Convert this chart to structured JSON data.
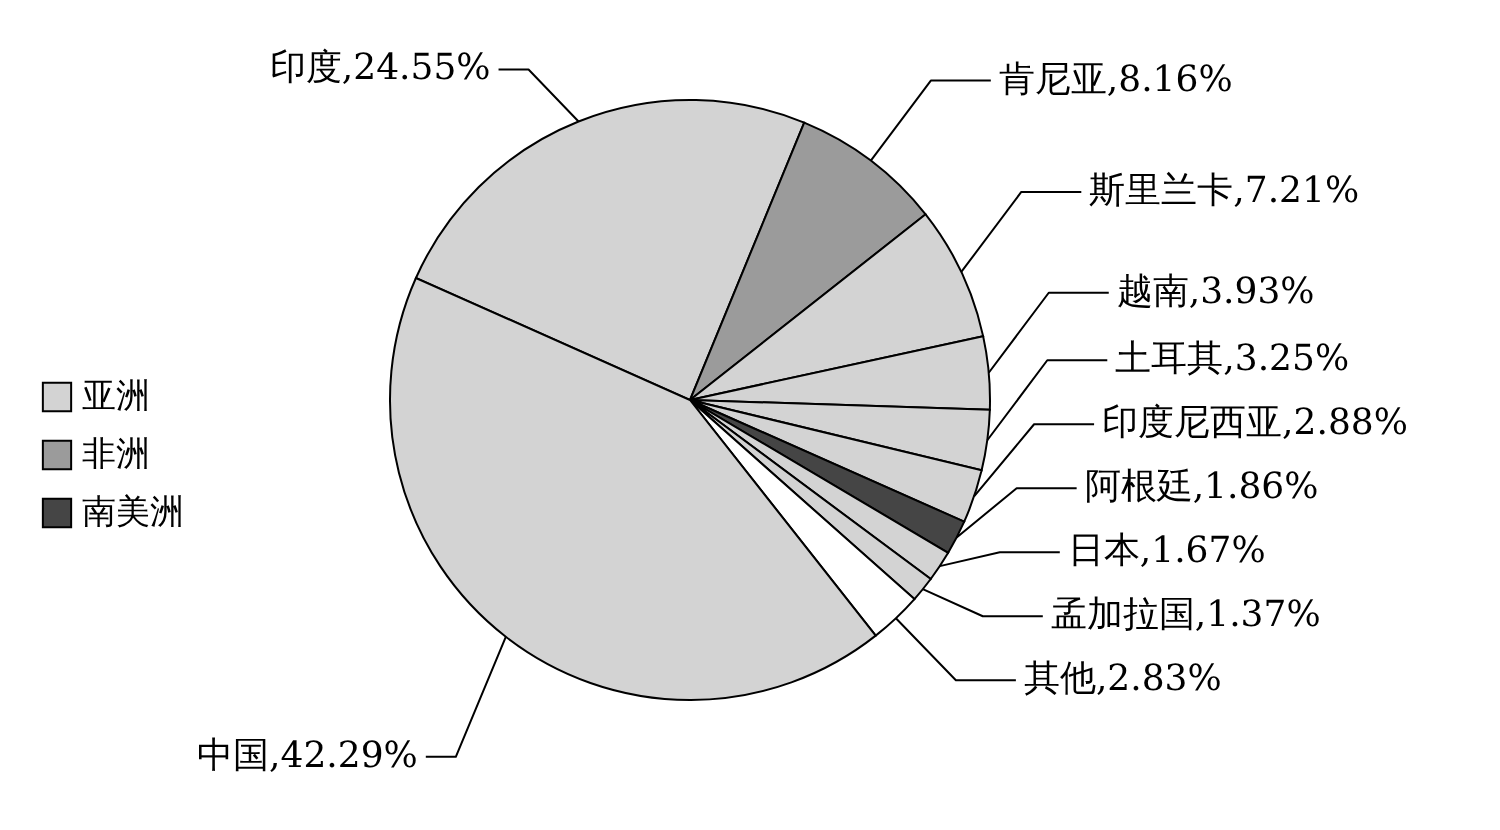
{
  "chart_data": {
    "type": "pie",
    "categories": [
      "印度",
      "肯尼亚",
      "斯里兰卡",
      "越南",
      "土耳其",
      "印度尼西亚",
      "阿根廷",
      "日本",
      "孟加拉国",
      "其他",
      "中国"
    ],
    "values": [
      24.55,
      8.16,
      7.21,
      3.93,
      3.25,
      2.88,
      1.86,
      1.67,
      1.37,
      2.83,
      42.29
    ],
    "value_labels": [
      ",24.55%",
      ",8.16%",
      ",7.21%",
      ",3.93%",
      ",3.25%",
      ",2.88%",
      ",1.86%",
      ",1.67%",
      ",1.37%",
      ",2.83%",
      ",42.29%"
    ],
    "colors": [
      "#d3d3d3",
      "#9b9b9b",
      "#d3d3d3",
      "#d3d3d3",
      "#d3d3d3",
      "#d3d3d3",
      "#454545",
      "#d3d3d3",
      "#d3d3d3",
      "#ffffff",
      "#d3d3d3"
    ],
    "annotations": [
      "亚洲",
      "非洲",
      "南美洲"
    ]
  }
}
